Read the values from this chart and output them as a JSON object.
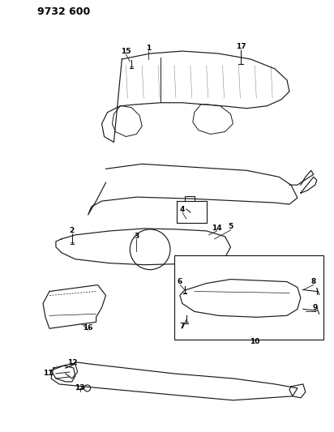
{
  "title": "9732 600",
  "background_color": "#ffffff",
  "line_color": "#1a1a1a",
  "text_color": "#000000",
  "fig_width": 4.12,
  "fig_height": 5.33,
  "dpi": 100
}
